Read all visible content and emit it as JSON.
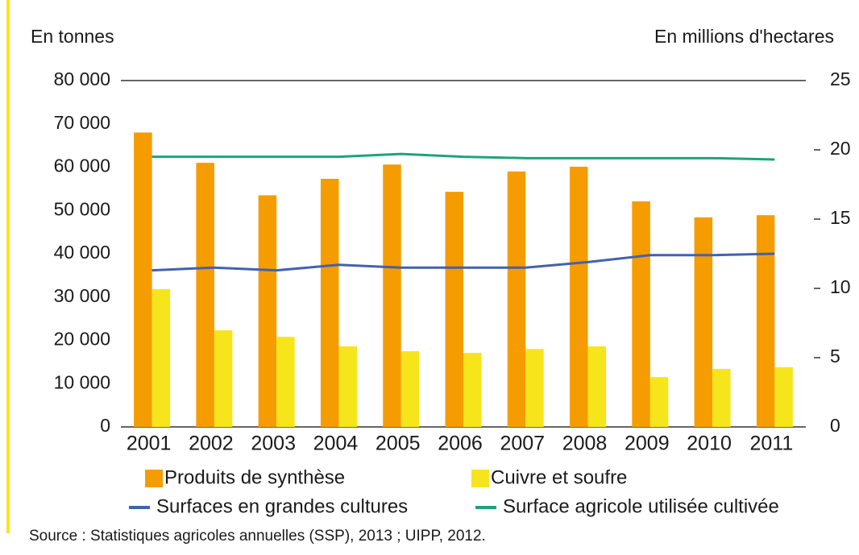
{
  "chart_data": {
    "type": "bar",
    "ylabel": "En tonnes",
    "y2label": "En millions d'hectares",
    "source": "Source : Statistiques agricoles annuelles (SSP), 2013 ; UIPP, 2012.",
    "categories": [
      "2001",
      "2002",
      "2003",
      "2004",
      "2005",
      "2006",
      "2007",
      "2008",
      "2009",
      "2010",
      "2011"
    ],
    "series": [
      {
        "name": "Produits de synthèse",
        "type": "bar",
        "color": "#f59c00",
        "values": [
          68000,
          61000,
          53500,
          57300,
          60600,
          54300,
          59000,
          60100,
          52100,
          48400,
          48900
        ]
      },
      {
        "name": "Cuivre et soufre",
        "type": "bar",
        "color": "#f7e51b",
        "values": [
          31800,
          22300,
          20800,
          18600,
          17500,
          17100,
          18000,
          18600,
          11500,
          13400,
          13800
        ]
      },
      {
        "name": "Surfaces en grandes cultures",
        "type": "line",
        "axis": "y2",
        "color": "#4461ad",
        "values": [
          11.3,
          11.5,
          11.3,
          11.7,
          11.5,
          11.5,
          11.5,
          11.9,
          12.4,
          12.4,
          12.5
        ]
      },
      {
        "name": "Surface agricole utilisée cultivée",
        "type": "line",
        "axis": "y2",
        "color": "#1fa37a",
        "values": [
          19.5,
          19.5,
          19.5,
          19.5,
          19.7,
          19.5,
          19.4,
          19.4,
          19.4,
          19.4,
          19.3
        ]
      }
    ],
    "ylim": [
      0,
      80000
    ],
    "yticks": [
      0,
      {
        "value": 10000,
        "label": "10 000"
      },
      {
        "value": 20000,
        "label": "20 000"
      },
      {
        "value": 30000,
        "label": "30 000"
      },
      {
        "value": 40000,
        "label": "40 000"
      },
      {
        "value": 50000,
        "label": "50 000"
      },
      {
        "value": 60000,
        "label": "60 000"
      },
      {
        "value": 70000,
        "label": "70 000"
      },
      {
        "value": 80000,
        "label": "80 000"
      }
    ],
    "y2lim": [
      0,
      25
    ],
    "y2ticks": [
      0,
      5,
      10,
      15,
      20,
      25
    ]
  }
}
